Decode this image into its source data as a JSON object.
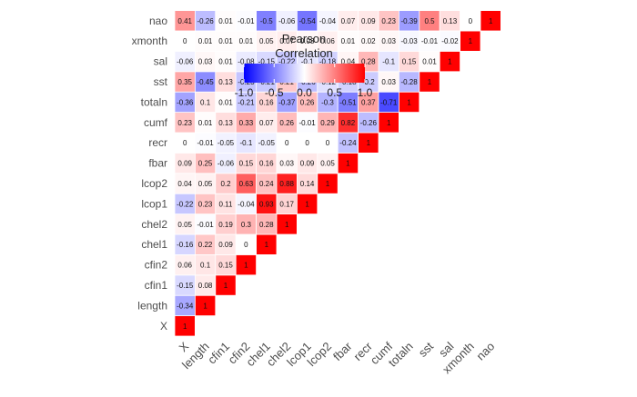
{
  "chart_data": {
    "type": "heatmap",
    "title": "",
    "legend": {
      "title": [
        "Pearson",
        "Correlation"
      ],
      "ticks": [
        "-1.0",
        "-0.5",
        "0.0",
        "0.5",
        "1.0"
      ],
      "range": [
        -1,
        1
      ],
      "colors": {
        "low": "#0000ff",
        "mid": "#ffffff",
        "high": "#ff0000"
      }
    },
    "variables": [
      "X",
      "length",
      "cfin1",
      "cfin2",
      "chel1",
      "chel2",
      "lcop1",
      "lcop2",
      "fbar",
      "recr",
      "cumf",
      "totaln",
      "sst",
      "sal",
      "xmonth",
      "nao"
    ],
    "matrix": [
      [
        "1"
      ],
      [
        "-0.34",
        "1"
      ],
      [
        "-0.15",
        "0.08",
        "1"
      ],
      [
        "0.06",
        "0.1",
        "0.15",
        "1"
      ],
      [
        "-0.16",
        "0.22",
        "0.09",
        "0",
        "1"
      ],
      [
        "0.05",
        "-0.01",
        "0.19",
        "0.3",
        "0.28",
        "1"
      ],
      [
        "-0.22",
        "0.23",
        "0.11",
        "-0.04",
        "0.93",
        "0.17",
        "1"
      ],
      [
        "0.04",
        "0.05",
        "0.2",
        "0.63",
        "0.24",
        "0.88",
        "0.14",
        "1"
      ],
      [
        "0.09",
        "0.25",
        "-0.06",
        "0.15",
        "0.16",
        "0.03",
        "0.09",
        "0.05",
        "1"
      ],
      [
        "0",
        "-0.01",
        "-0.05",
        "-0.1",
        "-0.05",
        "0",
        "0",
        "0",
        "-0.24",
        "1"
      ],
      [
        "0.23",
        "0.01",
        "0.13",
        "0.33",
        "0.07",
        "0.26",
        "-0.01",
        "0.29",
        "0.82",
        "-0.26",
        "1"
      ],
      [
        "-0.36",
        "0.1",
        "0.01",
        "-0.21",
        "0.16",
        "-0.37",
        "0.26",
        "-0.3",
        "-0.51",
        "0.37",
        "-0.71",
        "1"
      ],
      [
        "0.35",
        "-0.45",
        "0.13",
        "-0.23",
        "-0.21",
        "0.21",
        "-0.26",
        "-0.12",
        "-0.18",
        "-0.2",
        "0.03",
        "-0.28",
        "1"
      ],
      [
        "-0.06",
        "0.03",
        "0.01",
        "-0.08",
        "-0.15",
        "-0.22",
        "-0.1",
        "-0.18",
        "0.04",
        "0.28",
        "-0.1",
        "0.15",
        "0.01",
        "1"
      ],
      [
        "0",
        "0.01",
        "0.01",
        "0.01",
        "0.05",
        "0.07",
        "0.03",
        "0.06",
        "0.01",
        "0.02",
        "0.03",
        "-0.03",
        "-0.01",
        "-0.02",
        "1"
      ],
      [
        "0.41",
        "-0.26",
        "0.01",
        "-0.01",
        "-0.5",
        "-0.06",
        "-0.54",
        "-0.04",
        "0.07",
        "0.09",
        "0.23",
        "-0.39",
        "0.5",
        "0.13",
        "0",
        "1"
      ]
    ]
  }
}
